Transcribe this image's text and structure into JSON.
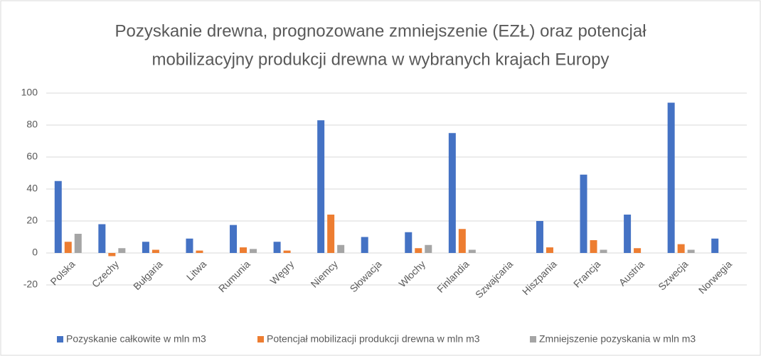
{
  "chart_data": {
    "type": "bar",
    "title": [
      "Pozyskanie drewna, prognozowane zmniejszenie (EZŁ) oraz potencjał",
      "mobilizacyjny produkcji drewna w wybranych krajach Europy"
    ],
    "categories": [
      "Polska",
      "Czechy",
      "Bułgaria",
      "Litwa",
      "Rumunia",
      "Węgry",
      "Niemcy",
      "Słowacja",
      "Włochy",
      "Finlandia",
      "Szwajcaria",
      "Hiszpania",
      "Francja",
      "Austria",
      "Szwecja",
      "Norwegia"
    ],
    "series": [
      {
        "name": "Pozyskanie całkowite w mln m3",
        "color": "#4472c4",
        "values": [
          45,
          18,
          7,
          9,
          17.5,
          7,
          83,
          10,
          13,
          75,
          null,
          20,
          49,
          24,
          94,
          9
        ]
      },
      {
        "name": "Potencjał mobilizacji produkcji drewna w mln m3",
        "color": "#ed7d31",
        "values": [
          7,
          -2,
          2,
          1.5,
          3.5,
          1.5,
          24,
          null,
          3,
          15,
          null,
          3.5,
          8,
          3,
          5.5,
          null
        ]
      },
      {
        "name": "Zmniejszenie pozyskania w mln m3",
        "color": "#a5a5a5",
        "values": [
          12,
          3,
          null,
          null,
          2.5,
          null,
          5,
          null,
          5,
          2,
          null,
          null,
          2,
          null,
          2,
          null
        ]
      }
    ],
    "ylim": [
      -20,
      100
    ],
    "yticks": [
      -20,
      0,
      20,
      40,
      60,
      80,
      100
    ],
    "grid": true,
    "legend": "bottom"
  }
}
